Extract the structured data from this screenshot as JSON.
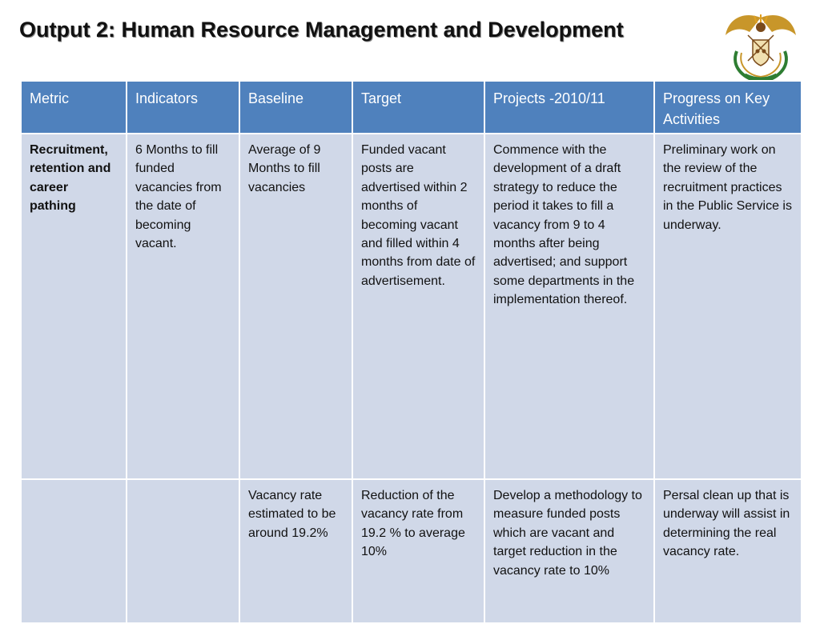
{
  "slide": {
    "title": "Output 2: Human Resource Management and Development"
  },
  "table": {
    "headers": [
      "Metric",
      "Indicators",
      "Baseline",
      "Target",
      "Projects -2010/11",
      "Progress on Key Activities"
    ],
    "rows": [
      {
        "cells": [
          "Recruitment, retention and career pathing",
          "6 Months to fill funded vacancies from the date of becoming vacant.",
          "Average of 9 Months to fill vacancies",
          "Funded vacant posts are advertised within 2 months of becoming vacant and filled within 4 months from date of advertisement.",
          " Commence with the development of  a draft strategy to reduce the period it takes to fill a vacancy from 9 to 4 months after being advertised; and support some departments in the implementation thereof.",
          "Preliminary work on the review of the recruitment practices in the Public Service is underway."
        ]
      },
      {
        "cells": [
          "",
          "",
          "Vacancy rate estimated to be around 19.2%",
          "Reduction of the vacancy rate from 19.2 % to average 10%",
          "Develop a methodology to measure funded posts which are vacant and target reduction in the vacancy rate to 10%",
          "Persal clean up that is underway will assist in determining the real vacancy rate."
        ]
      }
    ]
  },
  "colors": {
    "header_bg": "#4f81bd",
    "cell_bg": "#d0d8e8"
  },
  "logo": {
    "icon": "south-africa-coat-of-arms-icon"
  }
}
